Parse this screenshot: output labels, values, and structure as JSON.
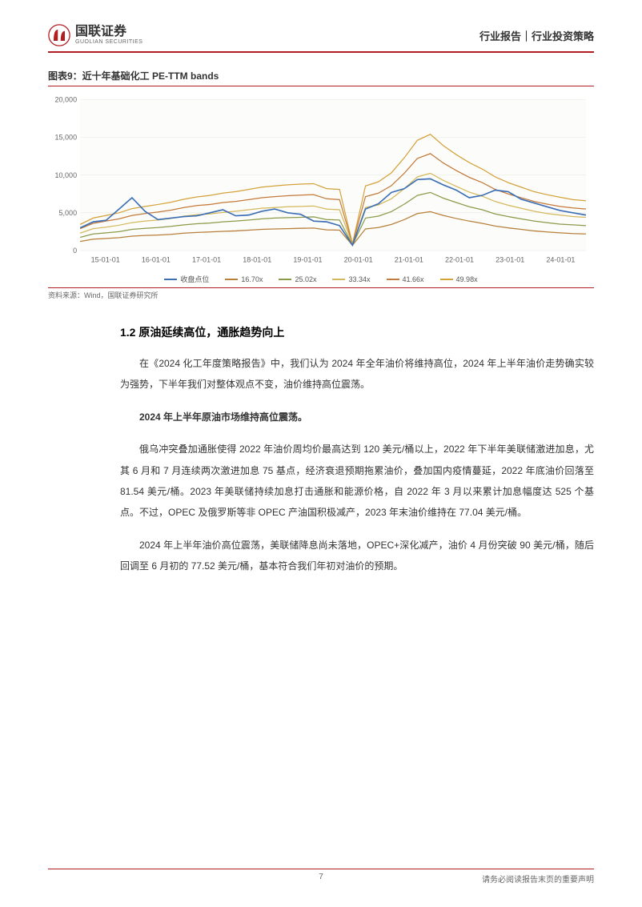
{
  "header": {
    "logo_cn": "国联证券",
    "logo_en": "GUOLIAN SECURITIES",
    "right": "行业报告｜行业投资策略"
  },
  "chart": {
    "title": "图表9：近十年基础化工 PE-TTM bands",
    "source": "资料来源：Wind，国联证券研究所",
    "type": "line",
    "background_color": "#fcfcfa",
    "grid_color": "#e6e6e0",
    "ylim": [
      0,
      20000
    ],
    "ytick_step": 5000,
    "yticks": [
      "0",
      "5,000",
      "10,000",
      "15,000",
      "20,000"
    ],
    "xticks": [
      "15-01-01",
      "16-01-01",
      "17-01-01",
      "18-01-01",
      "19-01-01",
      "20-01-01",
      "21-01-01",
      "22-01-01",
      "23-01-01",
      "24-01-01"
    ],
    "legend": [
      {
        "label": "收盘点位",
        "color": "#3d6fb5"
      },
      {
        "label": "16.70x",
        "color": "#b87f3a"
      },
      {
        "label": "25.02x",
        "color": "#8a9b4a"
      },
      {
        "label": "33.34x",
        "color": "#d4b85a"
      },
      {
        "label": "41.66x",
        "color": "#c47a3a"
      },
      {
        "label": "49.98x",
        "color": "#d4a23a"
      }
    ],
    "series": {
      "close": [
        3000,
        3800,
        4000,
        5500,
        7000,
        5200,
        4100,
        4300,
        4500,
        4600,
        5000,
        5400,
        4600,
        4700,
        5200,
        5500,
        5000,
        4800,
        3900,
        3800,
        3300,
        700,
        5500,
        6200,
        7700,
        8200,
        9400,
        9500,
        8700,
        8000,
        7000,
        7300,
        8000,
        7800,
        6800,
        6300,
        5800,
        5300,
        5000,
        4700
      ],
      "b1": [
        1200,
        1500,
        1600,
        1700,
        1900,
        2000,
        2050,
        2150,
        2300,
        2400,
        2450,
        2550,
        2600,
        2700,
        2800,
        2850,
        2900,
        2950,
        2980,
        2750,
        2700,
        700,
        2850,
        3050,
        3450,
        4100,
        4900,
        5150,
        4650,
        4250,
        3900,
        3600,
        3250,
        3000,
        2800,
        2600,
        2450,
        2350,
        2250,
        2200
      ],
      "b2": [
        1750,
        2200,
        2350,
        2500,
        2800,
        2950,
        3050,
        3200,
        3400,
        3550,
        3650,
        3800,
        3900,
        4050,
        4200,
        4300,
        4350,
        4400,
        4450,
        4100,
        4050,
        750,
        4300,
        4550,
        5150,
        6150,
        7300,
        7700,
        6950,
        6350,
        5800,
        5400,
        4850,
        4500,
        4200,
        3900,
        3700,
        3500,
        3400,
        3300
      ],
      "b3": [
        2300,
        2900,
        3100,
        3350,
        3700,
        3900,
        4050,
        4250,
        4550,
        4750,
        4850,
        5050,
        5200,
        5400,
        5600,
        5700,
        5800,
        5850,
        5900,
        5500,
        5400,
        800,
        5700,
        6050,
        6850,
        8200,
        9750,
        10250,
        9300,
        8500,
        7750,
        7200,
        6500,
        6000,
        5600,
        5200,
        4900,
        4700,
        4500,
        4400
      ],
      "b4": [
        2900,
        3600,
        3900,
        4200,
        4650,
        4900,
        5100,
        5350,
        5700,
        5950,
        6100,
        6350,
        6500,
        6750,
        7000,
        7150,
        7250,
        7350,
        7400,
        6850,
        6750,
        850,
        7150,
        7600,
        8600,
        10250,
        12200,
        12850,
        11600,
        10600,
        9700,
        9000,
        8100,
        7500,
        7000,
        6500,
        6150,
        5850,
        5650,
        5500
      ],
      "b5": [
        3450,
        4300,
        4650,
        5000,
        5550,
        5850,
        6100,
        6400,
        6800,
        7100,
        7300,
        7600,
        7800,
        8100,
        8400,
        8550,
        8700,
        8800,
        8850,
        8200,
        8100,
        900,
        8550,
        9100,
        10300,
        12300,
        14600,
        15400,
        13900,
        12700,
        11650,
        10800,
        9750,
        9000,
        8400,
        7800,
        7400,
        7050,
        6750,
        6600
      ]
    },
    "label_fontsize": 9,
    "line_width": 1.2
  },
  "section": {
    "heading": "1.2 原油延续高位，通胀趋势向上",
    "p1": "在《2024 化工年度策略报告》中，我们认为 2024 年全年油价将维持高位，2024 年上半年油价走势确实较为强势，下半年我们对整体观点不变，油价维持高位震荡。",
    "p2": "2024 年上半年原油市场维持高位震荡。",
    "p3": "俄乌冲突叠加通胀使得 2022 年油价周均价最高达到 120 美元/桶以上，2022 年下半年美联储激进加息，尤其 6 月和 7 月连续两次激进加息 75 基点，经济衰退预期拖累油价，叠加国内疫情蔓延，2022 年底油价回落至 81.54 美元/桶。2023 年美联储持续加息打击通胀和能源价格，自 2022 年 3 月以来累计加息幅度达 525 个基点。不过，OPEC 及俄罗斯等非 OPEC 产油国积极减产，2023 年末油价维持在 77.04 美元/桶。",
    "p4": "2024 年上半年油价高位震荡，美联储降息尚未落地，OPEC+深化减产，油价 4 月份突破 90 美元/桶，随后回调至 6 月初的 77.52 美元/桶，基本符合我们年初对油价的预期。"
  },
  "footer": {
    "page": "7",
    "disclaimer": "请务必阅读报告末页的重要声明"
  }
}
